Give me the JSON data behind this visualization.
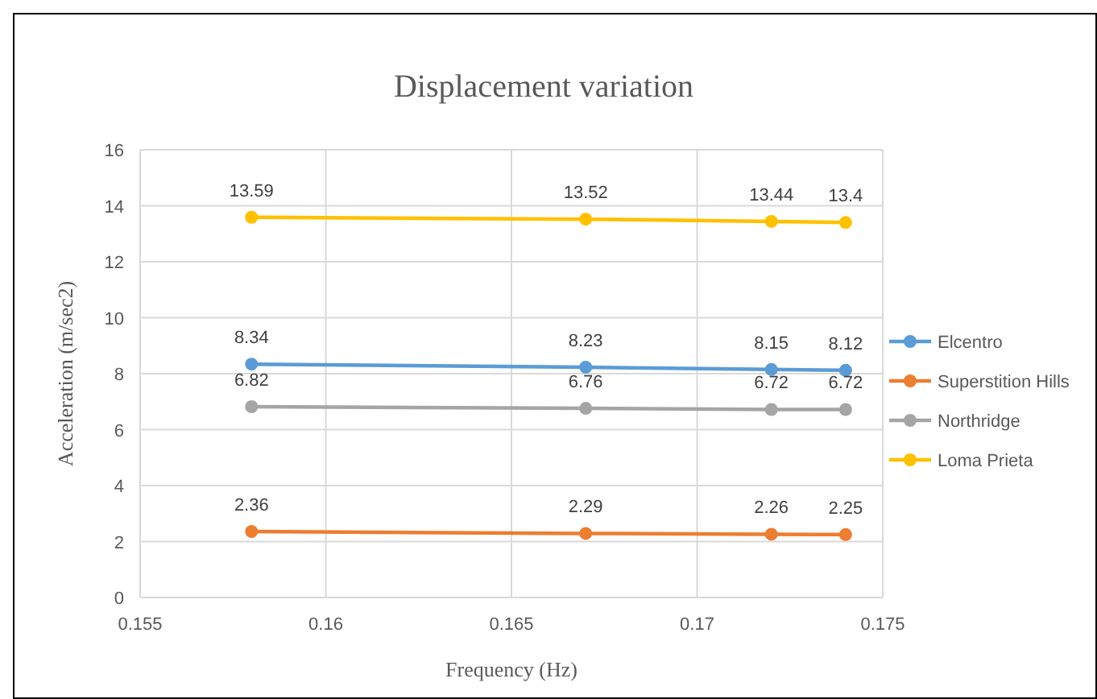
{
  "chart_data": {
    "type": "line",
    "title": "Displacement variation",
    "xlabel": "Frequency  (Hz)",
    "ylabel": "Acceleration  (m/sec2)",
    "x": [
      0.158,
      0.167,
      0.172,
      0.174
    ],
    "series": [
      {
        "name": "Elcentro",
        "color": "#5b9bd5",
        "values": [
          8.34,
          8.23,
          8.15,
          8.12
        ]
      },
      {
        "name": "Superstition Hills",
        "color": "#ed7d31",
        "values": [
          2.36,
          2.29,
          2.26,
          2.25
        ]
      },
      {
        "name": "Northridge",
        "color": "#a5a5a5",
        "values": [
          6.82,
          6.76,
          6.72,
          6.72
        ]
      },
      {
        "name": "Loma Prieta",
        "color": "#ffc000",
        "values": [
          13.59,
          13.52,
          13.44,
          13.4
        ]
      }
    ],
    "xlim": [
      0.155,
      0.175
    ],
    "xticks": [
      0.155,
      0.16,
      0.165,
      0.17,
      0.175
    ],
    "ylim": [
      0,
      16
    ],
    "yticks": [
      0,
      2,
      4,
      6,
      8,
      10,
      12,
      14,
      16
    ],
    "grid": true,
    "legend": "right",
    "marker": "circle",
    "line_style": "solid",
    "data_labels": true
  }
}
